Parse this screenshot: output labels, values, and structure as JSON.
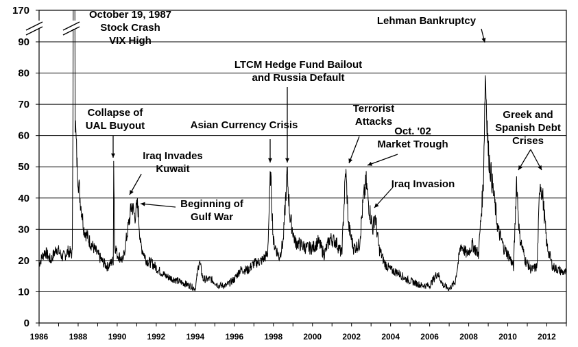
{
  "chart_data": {
    "type": "line",
    "title": "",
    "xlabel": "",
    "ylabel": "",
    "xlim": [
      1986,
      2013
    ],
    "ylim": [
      0,
      95
    ],
    "axis_break": {
      "shown_top_label": "170"
    },
    "grid": "horizontal",
    "x_ticks": [
      "1986",
      "1988",
      "1990",
      "1992",
      "1994",
      "1996",
      "1998",
      "2000",
      "2002",
      "2004",
      "2006",
      "2008",
      "2010",
      "2012"
    ],
    "y_ticks": [
      "0",
      "10",
      "20",
      "30",
      "40",
      "50",
      "60",
      "70",
      "80",
      "90",
      "170"
    ],
    "series": [
      {
        "color": "#000000",
        "points": [
          [
            1986.0,
            19
          ],
          [
            1986.3,
            23
          ],
          [
            1986.6,
            20
          ],
          [
            1986.9,
            24
          ],
          [
            1987.2,
            21
          ],
          [
            1987.5,
            23
          ],
          [
            1987.7,
            22
          ],
          [
            1987.8,
            170
          ],
          [
            1987.85,
            65
          ],
          [
            1987.95,
            50
          ],
          [
            1988.1,
            40
          ],
          [
            1988.3,
            30
          ],
          [
            1988.6,
            26
          ],
          [
            1988.9,
            23
          ],
          [
            1989.2,
            20
          ],
          [
            1989.5,
            18
          ],
          [
            1989.8,
            20
          ],
          [
            1989.82,
            52
          ],
          [
            1989.88,
            25
          ],
          [
            1990.0,
            22
          ],
          [
            1990.3,
            20
          ],
          [
            1990.55,
            30
          ],
          [
            1990.75,
            38
          ],
          [
            1990.9,
            34
          ],
          [
            1991.05,
            38
          ],
          [
            1991.2,
            25
          ],
          [
            1991.5,
            20
          ],
          [
            1991.8,
            19
          ],
          [
            1992.1,
            17
          ],
          [
            1992.5,
            15
          ],
          [
            1992.9,
            14
          ],
          [
            1993.3,
            13
          ],
          [
            1993.7,
            12
          ],
          [
            1994.0,
            11
          ],
          [
            1994.2,
            20
          ],
          [
            1994.4,
            14
          ],
          [
            1994.8,
            14
          ],
          [
            1995.2,
            12
          ],
          [
            1995.6,
            12
          ],
          [
            1996.0,
            14
          ],
          [
            1996.3,
            17
          ],
          [
            1996.7,
            17
          ],
          [
            1997.0,
            19
          ],
          [
            1997.4,
            20
          ],
          [
            1997.7,
            22
          ],
          [
            1997.85,
            48
          ],
          [
            1998.0,
            26
          ],
          [
            1998.3,
            21
          ],
          [
            1998.5,
            26
          ],
          [
            1998.7,
            48
          ],
          [
            1998.85,
            34
          ],
          [
            1999.1,
            26
          ],
          [
            1999.4,
            25
          ],
          [
            1999.7,
            24
          ],
          [
            2000.0,
            24
          ],
          [
            2000.3,
            26
          ],
          [
            2000.6,
            22
          ],
          [
            2000.9,
            27
          ],
          [
            2001.2,
            26
          ],
          [
            2001.5,
            22
          ],
          [
            2001.7,
            49
          ],
          [
            2001.85,
            31
          ],
          [
            2002.1,
            24
          ],
          [
            2002.4,
            25
          ],
          [
            2002.6,
            39
          ],
          [
            2002.75,
            45
          ],
          [
            2002.9,
            37
          ],
          [
            2003.1,
            30
          ],
          [
            2003.2,
            35
          ],
          [
            2003.4,
            24
          ],
          [
            2003.7,
            19
          ],
          [
            2004.0,
            17
          ],
          [
            2004.4,
            16
          ],
          [
            2004.8,
            14
          ],
          [
            2005.2,
            13
          ],
          [
            2005.6,
            12
          ],
          [
            2006.0,
            12
          ],
          [
            2006.4,
            16
          ],
          [
            2006.7,
            12
          ],
          [
            2007.0,
            11
          ],
          [
            2007.3,
            13
          ],
          [
            2007.6,
            25
          ],
          [
            2007.9,
            22
          ],
          [
            2008.2,
            25
          ],
          [
            2008.5,
            22
          ],
          [
            2008.75,
            45
          ],
          [
            2008.85,
            80
          ],
          [
            2009.0,
            55
          ],
          [
            2009.2,
            45
          ],
          [
            2009.5,
            30
          ],
          [
            2009.8,
            24
          ],
          [
            2010.1,
            21
          ],
          [
            2010.3,
            18
          ],
          [
            2010.45,
            46
          ],
          [
            2010.6,
            28
          ],
          [
            2010.9,
            20
          ],
          [
            2011.2,
            17
          ],
          [
            2011.5,
            18
          ],
          [
            2011.65,
            46
          ],
          [
            2011.8,
            40
          ],
          [
            2012.0,
            25
          ],
          [
            2012.3,
            18
          ],
          [
            2012.6,
            17
          ],
          [
            2012.9,
            16
          ],
          [
            2013.0,
            16
          ]
        ]
      }
    ],
    "annotations": [
      {
        "lines": [
          "October 19, 1987",
          "Stock Crash",
          "VIX High"
        ],
        "x": 1987.8,
        "y": 170
      },
      {
        "lines": [
          "Collapse of",
          "UAL Buyout"
        ],
        "x": 1989.8,
        "y": 52
      },
      {
        "lines": [
          "Iraq Invades",
          "Kuwait"
        ],
        "x": 1990.6,
        "y": 40
      },
      {
        "lines": [
          "Beginning of",
          "Gulf War"
        ],
        "x": 1991.0,
        "y": 38
      },
      {
        "lines": [
          "Asian Currency Crisis"
        ],
        "x": 1997.85,
        "y": 49
      },
      {
        "lines": [
          "LTCM Hedge Fund Bailout",
          "and Russia Default"
        ],
        "x": 1998.7,
        "y": 50
      },
      {
        "lines": [
          "Terrorist",
          "Attacks"
        ],
        "x": 2001.7,
        "y": 50
      },
      {
        "lines": [
          "Oct. '02",
          "Market Trough"
        ],
        "x": 2002.75,
        "y": 49
      },
      {
        "lines": [
          "Iraq Invasion"
        ],
        "x": 2003.1,
        "y": 36
      },
      {
        "lines": [
          "Lehman Bankruptcy"
        ],
        "x": 2008.75,
        "y": 90
      },
      {
        "lines": [
          "Greek and",
          "Spanish Debt",
          "Crises"
        ],
        "x": 2011.0,
        "y": 48
      }
    ]
  }
}
